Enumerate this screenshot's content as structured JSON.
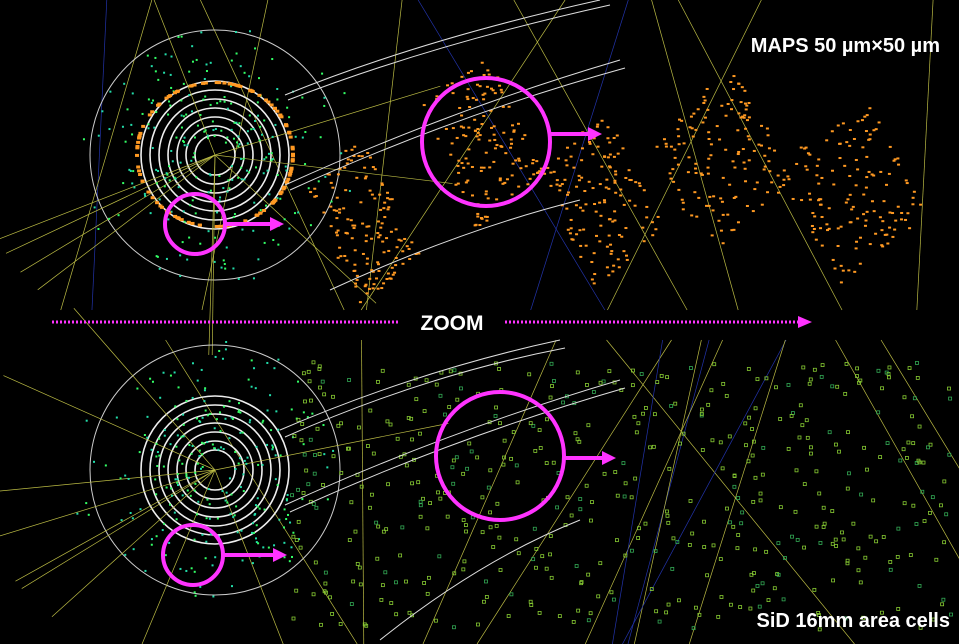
{
  "labels": {
    "top_right": "MAPS 50 µm×50 µm",
    "center": "ZOOM",
    "bottom_right": "SiD 16mm area cells"
  }
}
